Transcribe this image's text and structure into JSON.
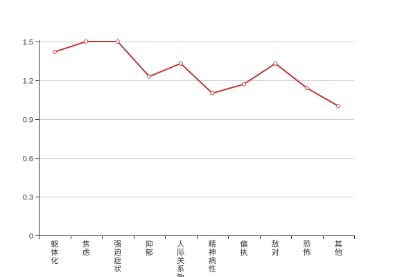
{
  "chart_data": {
    "type": "line",
    "title": "",
    "xlabel": "",
    "ylabel": "",
    "categories": [
      "躯体化",
      "焦虑",
      "强迫症状",
      "抑郁",
      "人际关系敏感",
      "精神病性",
      "偏执",
      "敌对",
      "恐怖",
      "其他"
    ],
    "series": [
      {
        "values": [
          1.42,
          1.5,
          1.5,
          1.23,
          1.33,
          1.1,
          1.17,
          1.33,
          1.14,
          1.0
        ]
      }
    ],
    "ylim": [
      0,
      1.5
    ],
    "yticks": [
      0,
      0.3,
      0.6,
      0.9,
      1.2,
      1.5
    ],
    "ytick_labels": [
      "0",
      "0.3",
      "0.6",
      "0.9",
      "1.2",
      "1.5"
    ],
    "grid": true,
    "legend": "none",
    "colors": {
      "line": "#c23531",
      "marker_fill": "#ffffff",
      "grid": "#cccccc",
      "axis": "#333333"
    }
  }
}
